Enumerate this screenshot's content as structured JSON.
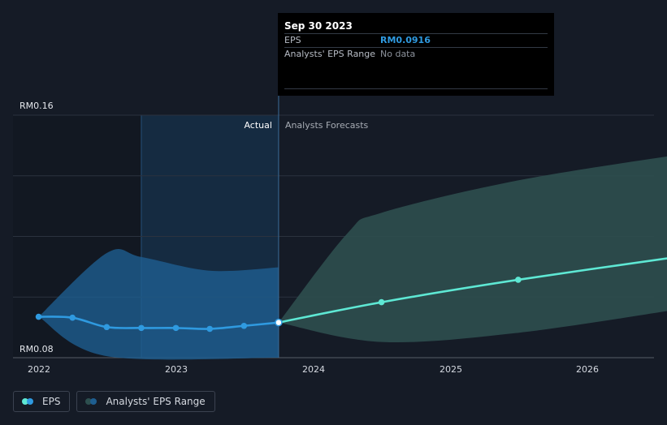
{
  "chart_data": {
    "type": "line",
    "x_ticks": [
      "2022",
      "2023",
      "2024",
      "2025",
      "2026"
    ],
    "ylim": [
      0.08,
      0.16
    ],
    "y_ticks": [
      {
        "value": 0.16,
        "label": "RM0.16"
      },
      {
        "value": 0.08,
        "label": "RM0.08"
      }
    ],
    "regions": {
      "actual_label": "Actual",
      "forecast_label": "Analysts Forecasts"
    },
    "series": [
      {
        "name": "EPS",
        "kind": "actual",
        "color": "#2f9ae0",
        "points": [
          {
            "x": "2021-12-31",
            "y": 0.0935
          },
          {
            "x": "2022-03-31",
            "y": 0.0932
          },
          {
            "x": "2022-06-30",
            "y": 0.0901
          },
          {
            "x": "2022-09-30",
            "y": 0.0898
          },
          {
            "x": "2022-12-31",
            "y": 0.0898
          },
          {
            "x": "2023-03-31",
            "y": 0.0895
          },
          {
            "x": "2023-06-30",
            "y": 0.0905
          },
          {
            "x": "2023-09-30",
            "y": 0.0916
          }
        ]
      },
      {
        "name": "EPS",
        "kind": "forecast",
        "color": "#5ee8d4",
        "points": [
          {
            "x": "2023-09-30",
            "y": 0.0916
          },
          {
            "x": "2024-06-30",
            "y": 0.0983
          },
          {
            "x": "2025-06-30",
            "y": 0.1057
          },
          {
            "x": "2026-09-30",
            "y": 0.1138
          }
        ]
      }
    ],
    "ranges": [
      {
        "name": "Analysts' EPS Range",
        "kind": "actual",
        "color": "#1e5e90",
        "upper": [
          {
            "x": "2021-12-31",
            "y": 0.0935
          },
          {
            "x": "2022-06-30",
            "y": 0.1145
          },
          {
            "x": "2022-09-30",
            "y": 0.1132
          },
          {
            "x": "2023-03-31",
            "y": 0.1087
          },
          {
            "x": "2023-09-30",
            "y": 0.1098
          }
        ],
        "lower": [
          {
            "x": "2021-12-31",
            "y": 0.0935
          },
          {
            "x": "2022-06-30",
            "y": 0.0805
          },
          {
            "x": "2023-09-30",
            "y": 0.08
          }
        ]
      },
      {
        "name": "Analysts' EPS Range",
        "kind": "forecast",
        "color": "#2d4f4f",
        "upper": [
          {
            "x": "2023-09-30",
            "y": 0.0916
          },
          {
            "x": "2024-03-31",
            "y": 0.121
          },
          {
            "x": "2024-06-30",
            "y": 0.1278
          },
          {
            "x": "2025-06-30",
            "y": 0.1385
          },
          {
            "x": "2026-09-30",
            "y": 0.1475
          }
        ],
        "lower": [
          {
            "x": "2023-09-30",
            "y": 0.0916
          },
          {
            "x": "2024-06-30",
            "y": 0.0852
          },
          {
            "x": "2025-06-30",
            "y": 0.0882
          },
          {
            "x": "2026-09-30",
            "y": 0.0965
          }
        ]
      }
    ],
    "legend": {
      "placement": "bottom-left",
      "items": [
        {
          "label": "EPS",
          "color_a": "#5ee8d4",
          "color_b": "#2f9ae0"
        },
        {
          "label": "Analysts' EPS Range",
          "color_a": "#2d4f4f",
          "color_b": "#1e5e90"
        }
      ]
    }
  },
  "tooltip": {
    "date": "Sep 30 2023",
    "rows": [
      {
        "label": "EPS",
        "value": "RM0.0916"
      },
      {
        "label": "Analysts' EPS Range",
        "value": "No data"
      }
    ]
  }
}
